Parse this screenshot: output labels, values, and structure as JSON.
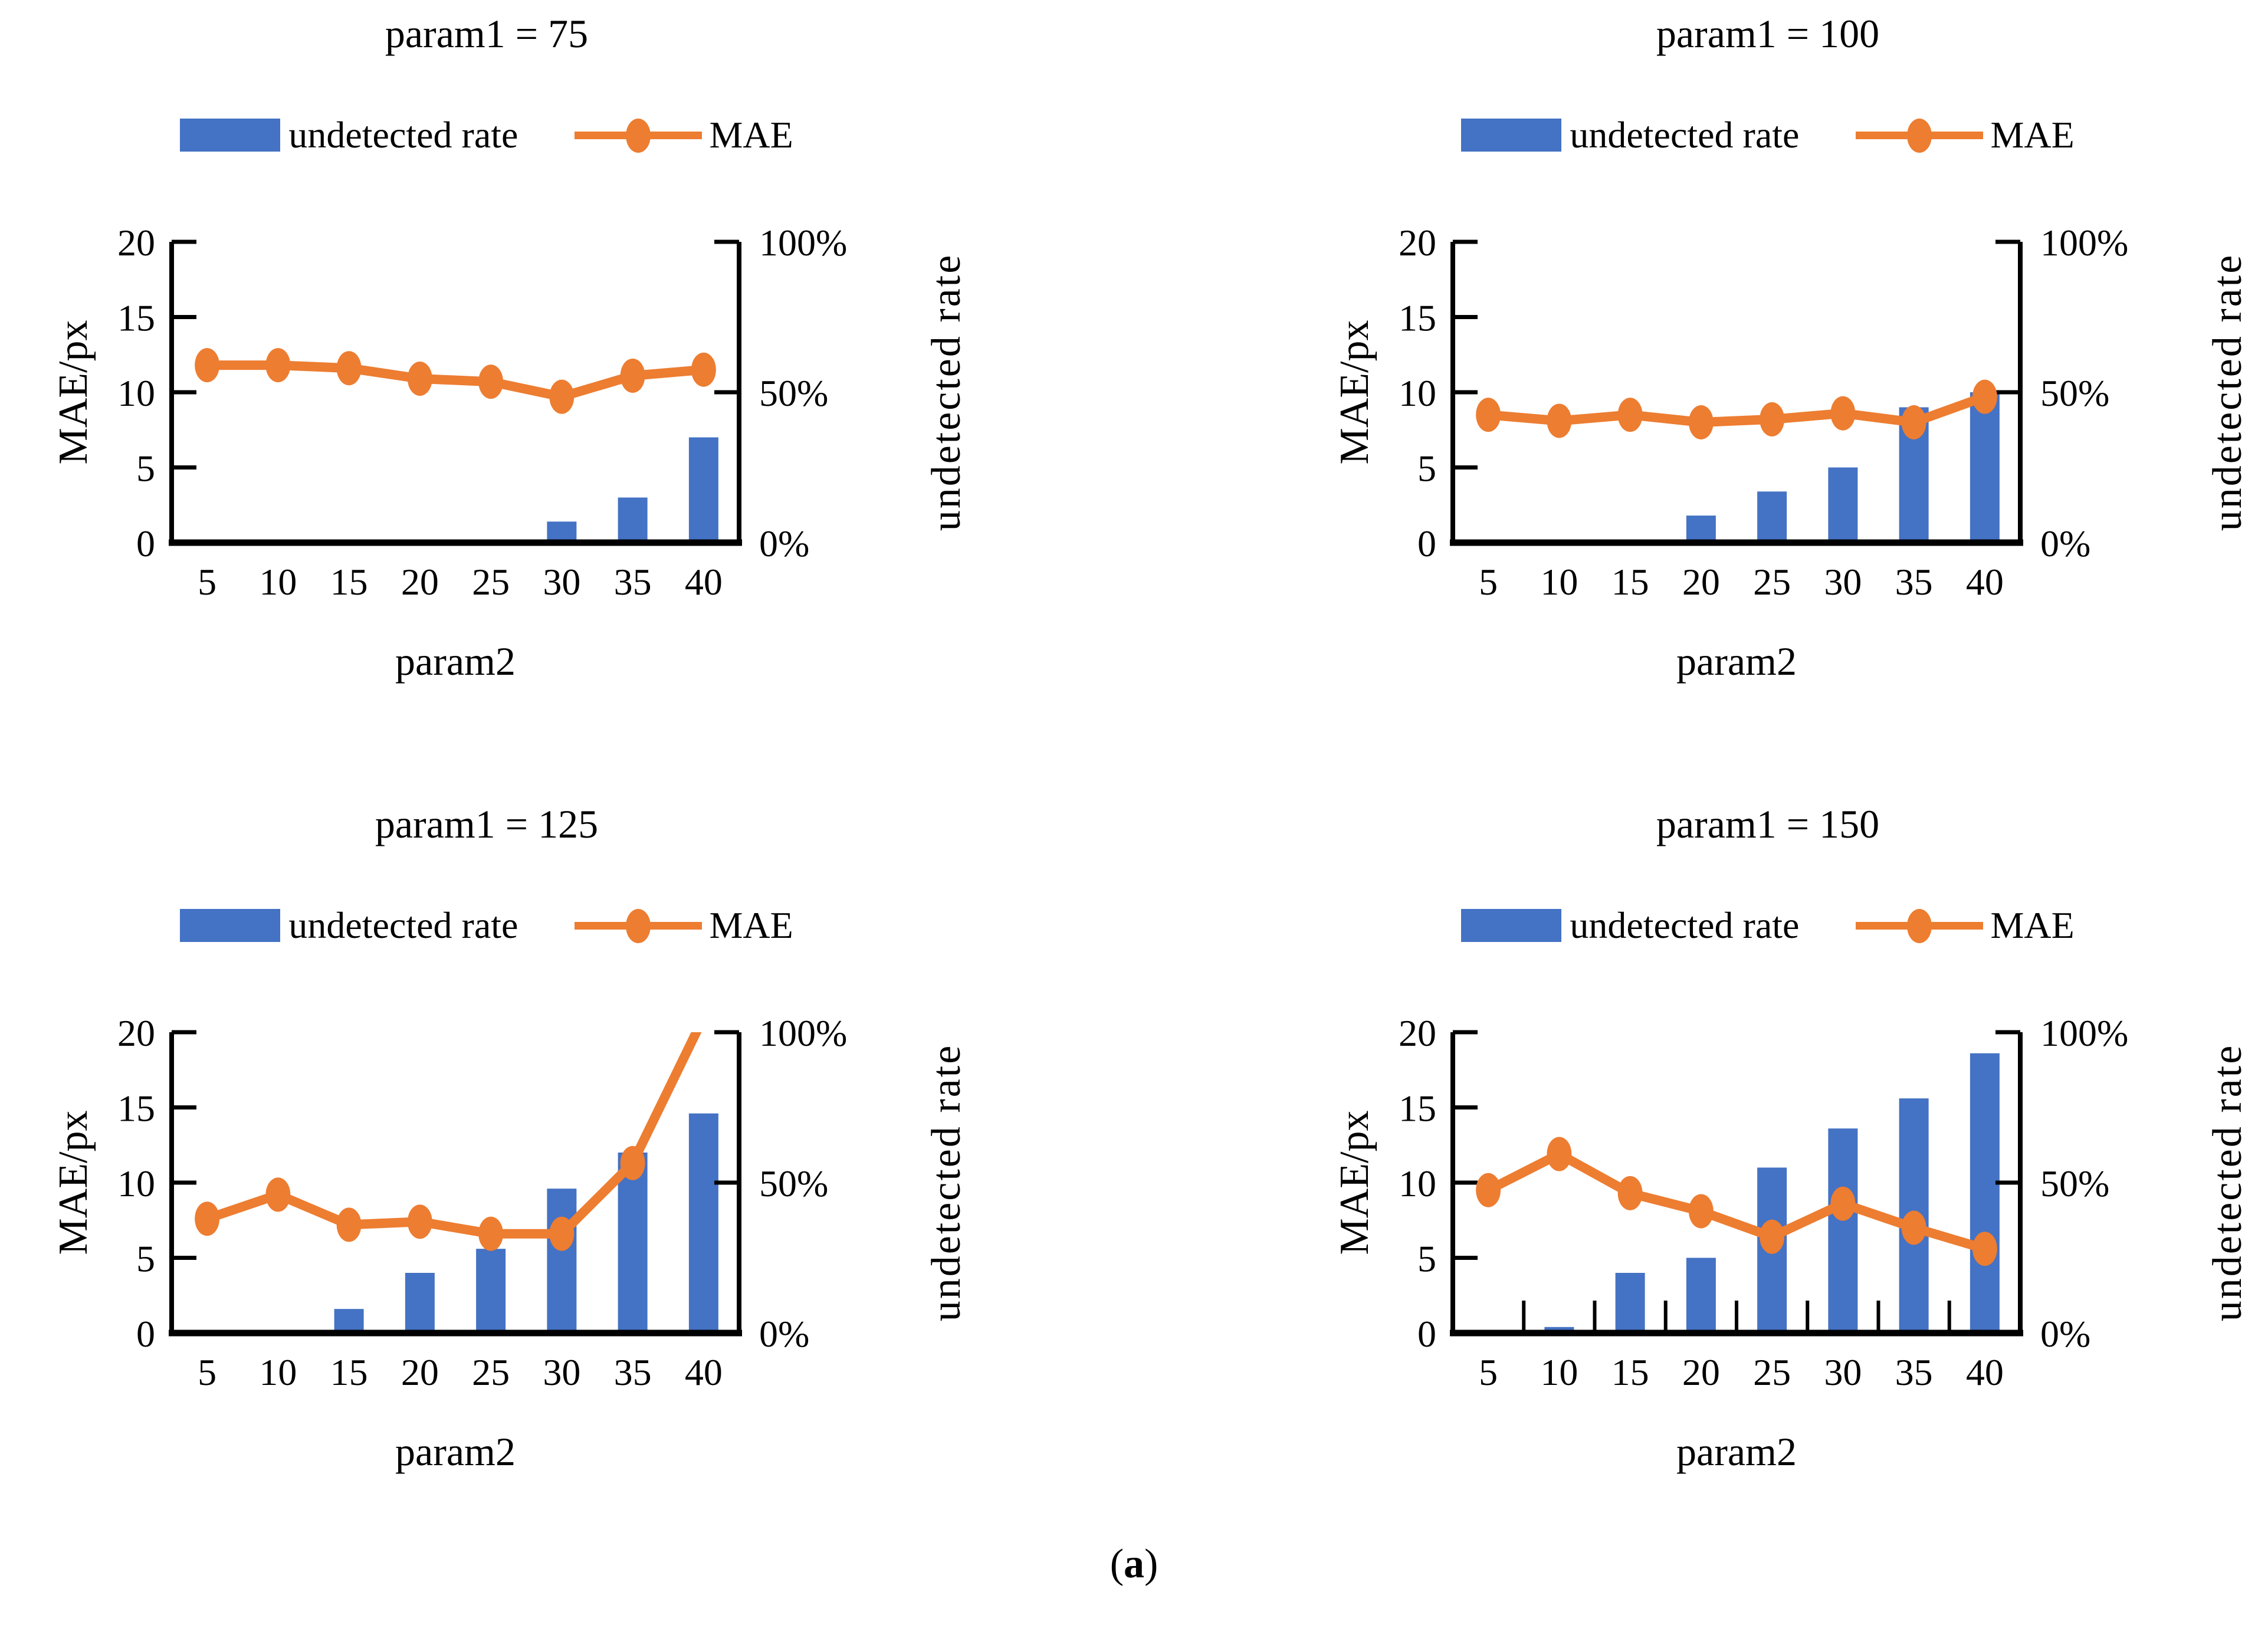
{
  "caption": {
    "open": "(",
    "letter": "a",
    "close": ")"
  },
  "colors": {
    "bar": "#4472C4",
    "line": "#ED7D31",
    "axis": "#000000",
    "text": "#000000",
    "background": "#ffffff"
  },
  "chart_data": [
    {
      "type": "bar",
      "combo": "bar+line",
      "title": "param1 = 75",
      "xlabel": "param2",
      "ylabel_left": "MAE/px",
      "ylabel_right": "undetected rate",
      "categories": [
        5,
        10,
        15,
        20,
        25,
        30,
        35,
        40
      ],
      "ylim_left": [
        0,
        20
      ],
      "yticks_left": [
        0,
        5,
        10,
        15,
        20
      ],
      "ylim_right_pct": [
        0,
        100
      ],
      "yticks_right_labels": [
        "0%",
        "50%",
        "100%"
      ],
      "legend": [
        {
          "label": "undetected rate",
          "marker": "bar",
          "color": "#4472C4"
        },
        {
          "label": "MAE",
          "marker": "line-dot",
          "color": "#ED7D31"
        }
      ],
      "series": [
        {
          "name": "undetected rate",
          "type": "bar",
          "axis": "right",
          "values_pct": [
            0,
            0,
            0,
            0,
            0,
            7,
            15,
            35
          ]
        },
        {
          "name": "MAE",
          "type": "line",
          "axis": "left",
          "values": [
            11.8,
            11.8,
            11.6,
            10.9,
            10.7,
            9.7,
            11.1,
            11.5
          ]
        }
      ],
      "x_boundary_ticks": false,
      "grid": false,
      "legend_position": "top"
    },
    {
      "type": "bar",
      "combo": "bar+line",
      "title": "param1 = 100",
      "xlabel": "param2",
      "ylabel_left": "MAE/px",
      "ylabel_right": "undetected rate",
      "categories": [
        5,
        10,
        15,
        20,
        25,
        30,
        35,
        40
      ],
      "ylim_left": [
        0,
        20
      ],
      "yticks_left": [
        0,
        5,
        10,
        15,
        20
      ],
      "ylim_right_pct": [
        0,
        100
      ],
      "yticks_right_labels": [
        "0%",
        "50%",
        "100%"
      ],
      "legend": [
        {
          "label": "undetected rate",
          "marker": "bar",
          "color": "#4472C4"
        },
        {
          "label": "MAE",
          "marker": "line-dot",
          "color": "#ED7D31"
        }
      ],
      "series": [
        {
          "name": "undetected rate",
          "type": "bar",
          "axis": "right",
          "values_pct": [
            0,
            0,
            0,
            9,
            17,
            25,
            45,
            50
          ]
        },
        {
          "name": "MAE",
          "type": "line",
          "axis": "left",
          "values": [
            8.5,
            8.1,
            8.5,
            8.0,
            8.2,
            8.6,
            8.0,
            9.7
          ]
        }
      ],
      "x_boundary_ticks": false,
      "grid": false,
      "legend_position": "top"
    },
    {
      "type": "bar",
      "combo": "bar+line",
      "title": "param1 = 125",
      "xlabel": "param2",
      "ylabel_left": "MAE/px",
      "ylabel_right": "undetected rate",
      "categories": [
        5,
        10,
        15,
        20,
        25,
        30,
        35,
        40
      ],
      "ylim_left": [
        0,
        20
      ],
      "yticks_left": [
        0,
        5,
        10,
        15,
        20
      ],
      "ylim_right_pct": [
        0,
        100
      ],
      "yticks_right_labels": [
        "0%",
        "50%",
        "100%"
      ],
      "legend": [
        {
          "label": "undetected rate",
          "marker": "bar",
          "color": "#4472C4"
        },
        {
          "label": "MAE",
          "marker": "line-dot",
          "color": "#ED7D31"
        }
      ],
      "series": [
        {
          "name": "undetected rate",
          "type": "bar",
          "axis": "right",
          "values_pct": [
            0,
            0,
            8,
            20,
            28,
            48,
            60,
            73
          ]
        },
        {
          "name": "MAE",
          "type": "line",
          "axis": "left",
          "values": [
            7.6,
            9.2,
            7.2,
            7.4,
            6.6,
            6.6,
            11.3,
            21
          ]
        }
      ],
      "x_boundary_ticks": false,
      "grid": false,
      "legend_position": "top"
    },
    {
      "type": "bar",
      "combo": "bar+line",
      "title": "param1 = 150",
      "xlabel": "param2",
      "ylabel_left": "MAE/px",
      "ylabel_right": "undetected rate",
      "categories": [
        5,
        10,
        15,
        20,
        25,
        30,
        35,
        40
      ],
      "ylim_left": [
        0,
        20
      ],
      "yticks_left": [
        0,
        5,
        10,
        15,
        20
      ],
      "ylim_right_pct": [
        0,
        100
      ],
      "yticks_right_labels": [
        "0%",
        "50%",
        "100%"
      ],
      "legend": [
        {
          "label": "undetected rate",
          "marker": "bar",
          "color": "#4472C4"
        },
        {
          "label": "MAE",
          "marker": "line-dot",
          "color": "#ED7D31"
        }
      ],
      "series": [
        {
          "name": "undetected rate",
          "type": "bar",
          "axis": "right",
          "values_pct": [
            0,
            2,
            20,
            25,
            55,
            68,
            78,
            93
          ]
        },
        {
          "name": "MAE",
          "type": "line",
          "axis": "left",
          "values": [
            9.5,
            11.9,
            9.3,
            8.1,
            6.4,
            8.6,
            7.0,
            5.6
          ]
        }
      ],
      "x_boundary_ticks": true,
      "grid": false,
      "legend_position": "top"
    }
  ]
}
